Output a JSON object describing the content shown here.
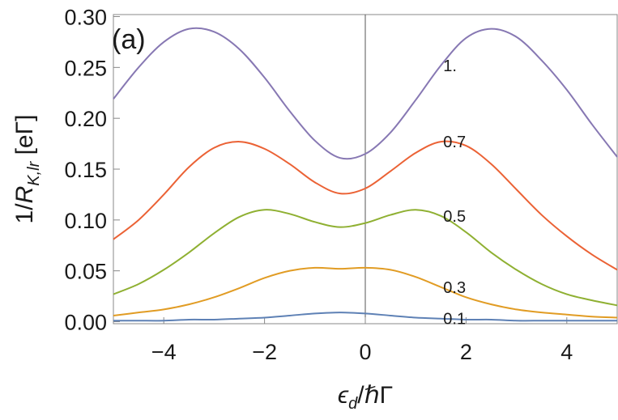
{
  "chart_data": {
    "type": "line",
    "annotation": "(a)",
    "xlabel": [
      "ϵ",
      "d",
      "/ℏΓ"
    ],
    "ylabel": [
      "1/",
      "R",
      "K,lr",
      " [eΓ]"
    ],
    "x": [
      -5,
      -4.5,
      -4,
      -3.5,
      -3,
      -2.5,
      -2,
      -1.5,
      -1,
      -0.5,
      0,
      0.5,
      1,
      1.5,
      2,
      2.5,
      3,
      3.5,
      4,
      4.5,
      5
    ],
    "series": [
      {
        "name": "0.1",
        "color": "#5e81b5",
        "values": [
          0.001,
          0.001,
          0.001,
          0.002,
          0.002,
          0.003,
          0.004,
          0.006,
          0.008,
          0.009,
          0.008,
          0.006,
          0.004,
          0.003,
          0.002,
          0.002,
          0.001,
          0.001,
          0.001,
          0.001,
          0.001
        ]
      },
      {
        "name": "0.3",
        "color": "#e19c24",
        "values": [
          0.006,
          0.009,
          0.012,
          0.017,
          0.024,
          0.033,
          0.043,
          0.05,
          0.053,
          0.052,
          0.053,
          0.051,
          0.044,
          0.034,
          0.024,
          0.017,
          0.012,
          0.009,
          0.007,
          0.005,
          0.004
        ]
      },
      {
        "name": "0.5",
        "color": "#8fb032",
        "values": [
          0.027,
          0.037,
          0.051,
          0.068,
          0.087,
          0.103,
          0.11,
          0.106,
          0.098,
          0.093,
          0.097,
          0.105,
          0.11,
          0.104,
          0.088,
          0.068,
          0.051,
          0.037,
          0.027,
          0.021,
          0.016
        ]
      },
      {
        "name": "0.7",
        "color": "#eb6235",
        "values": [
          0.081,
          0.1,
          0.125,
          0.152,
          0.171,
          0.177,
          0.17,
          0.155,
          0.137,
          0.126,
          0.131,
          0.148,
          0.166,
          0.177,
          0.173,
          0.155,
          0.13,
          0.105,
          0.084,
          0.066,
          0.051
        ]
      },
      {
        "name": "1.",
        "color": "#8778b3",
        "values": [
          0.219,
          0.25,
          0.275,
          0.288,
          0.285,
          0.268,
          0.24,
          0.207,
          0.178,
          0.161,
          0.165,
          0.186,
          0.218,
          0.252,
          0.279,
          0.288,
          0.28,
          0.257,
          0.228,
          0.194,
          0.162
        ]
      }
    ],
    "xlim": [
      -5,
      5
    ],
    "ylim": [
      -0.002,
      0.302
    ],
    "xticks": [
      {
        "value": -4,
        "label": "−4"
      },
      {
        "value": -2,
        "label": "−2"
      },
      0,
      2,
      4
    ],
    "yticks": [
      {
        "value": 0,
        "label": "0.00"
      },
      0.05,
      {
        "value": 0.1,
        "label": "0.10"
      },
      0.15,
      {
        "value": 0.2,
        "label": "0.20"
      },
      0.25,
      {
        "value": 0.3,
        "label": "0.30"
      }
    ]
  }
}
